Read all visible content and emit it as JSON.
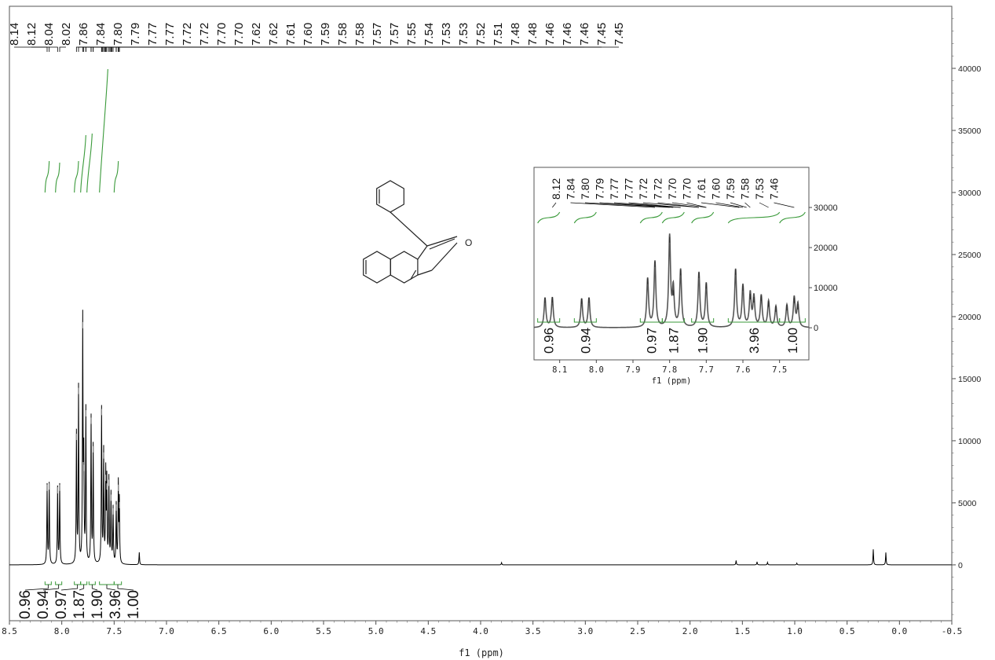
{
  "chart_data": {
    "type": "line",
    "xlabel": "f1 (ppm)",
    "xlim": [
      8.5,
      -0.5
    ],
    "ylim": [
      -4500,
      45000
    ],
    "x_ticks": [
      "8.5",
      "8.0",
      "7.5",
      "7.0",
      "6.5",
      "6.0",
      "5.5",
      "5.0",
      "4.5",
      "4.0",
      "3.5",
      "3.0",
      "2.5",
      "2.0",
      "1.5",
      "1.0",
      "0.5",
      "0.0",
      "-0.5"
    ],
    "x_tick_values": [
      8.5,
      8.0,
      7.5,
      7.0,
      6.5,
      6.0,
      5.5,
      5.0,
      4.5,
      4.0,
      3.5,
      3.0,
      2.5,
      2.0,
      1.5,
      1.0,
      0.5,
      0.0,
      -0.5
    ],
    "y_ticks": [
      "0",
      "5000",
      "10000",
      "15000",
      "20000",
      "25000",
      "30000",
      "35000",
      "40000"
    ],
    "y_tick_values": [
      0,
      5000,
      10000,
      15000,
      20000,
      25000,
      30000,
      35000,
      40000
    ],
    "peak_labels": [
      "8.14",
      "8.12",
      "8.04",
      "8.02",
      "7.86",
      "7.84",
      "7.80",
      "7.79",
      "7.77",
      "7.77",
      "7.72",
      "7.72",
      "7.70",
      "7.70",
      "7.62",
      "7.62",
      "7.61",
      "7.60",
      "7.59",
      "7.58",
      "7.58",
      "7.57",
      "7.57",
      "7.55",
      "7.54",
      "7.53",
      "7.53",
      "7.52",
      "7.51",
      "7.48",
      "7.48",
      "7.46",
      "7.46",
      "7.46",
      "7.45",
      "7.45"
    ],
    "peaks": [
      {
        "x": 8.14,
        "y": 6400
      },
      {
        "x": 8.12,
        "y": 6500
      },
      {
        "x": 8.04,
        "y": 6200
      },
      {
        "x": 8.02,
        "y": 6400
      },
      {
        "x": 7.86,
        "y": 10500
      },
      {
        "x": 7.84,
        "y": 14200
      },
      {
        "x": 7.8,
        "y": 19500
      },
      {
        "x": 7.79,
        "y": 8000
      },
      {
        "x": 7.77,
        "y": 12400
      },
      {
        "x": 7.72,
        "y": 11800
      },
      {
        "x": 7.7,
        "y": 9500
      },
      {
        "x": 7.62,
        "y": 12500
      },
      {
        "x": 7.6,
        "y": 9000
      },
      {
        "x": 7.58,
        "y": 7200
      },
      {
        "x": 7.57,
        "y": 6500
      },
      {
        "x": 7.55,
        "y": 6800
      },
      {
        "x": 7.53,
        "y": 5600
      },
      {
        "x": 7.51,
        "y": 4500
      },
      {
        "x": 7.48,
        "y": 4800
      },
      {
        "x": 7.46,
        "y": 6400
      },
      {
        "x": 7.45,
        "y": 5000
      },
      {
        "x": 7.26,
        "y": 1000
      },
      {
        "x": 3.8,
        "y": 180
      },
      {
        "x": 1.56,
        "y": 350
      },
      {
        "x": 1.36,
        "y": 250
      },
      {
        "x": 1.26,
        "y": 200
      },
      {
        "x": 0.98,
        "y": 140
      },
      {
        "x": 0.25,
        "y": 1250
      },
      {
        "x": 0.13,
        "y": 1000
      }
    ],
    "integrals": [
      {
        "label": "0.96",
        "from": 8.16,
        "to": 8.1
      },
      {
        "label": "0.94",
        "from": 8.06,
        "to": 8.0
      },
      {
        "label": "0.97",
        "from": 7.88,
        "to": 7.82
      },
      {
        "label": "1.87",
        "from": 7.82,
        "to": 7.76
      },
      {
        "label": "1.90",
        "from": 7.74,
        "to": 7.68
      },
      {
        "label": "3.96",
        "from": 7.64,
        "to": 7.5
      },
      {
        "label": "1.00",
        "from": 7.5,
        "to": 7.43
      }
    ],
    "inset": {
      "xlabel": "f1 (ppm)",
      "xlim": [
        8.17,
        7.42
      ],
      "ylim": [
        -8000,
        40000
      ],
      "x_ticks": [
        "8.1",
        "8.0",
        "7.9",
        "7.8",
        "7.7",
        "7.6",
        "7.5"
      ],
      "x_tick_values": [
        8.1,
        8.0,
        7.9,
        7.8,
        7.7,
        7.6,
        7.5
      ],
      "y_ticks": [
        "0",
        "10000",
        "20000",
        "30000"
      ],
      "y_tick_values": [
        0,
        10000,
        20000,
        30000
      ],
      "peak_labels": [
        "8.12",
        "7.84",
        "7.80",
        "7.79",
        "7.77",
        "7.77",
        "7.72",
        "7.72",
        "7.70",
        "7.70",
        "7.61",
        "7.60",
        "7.59",
        "7.58",
        "7.53",
        "7.46"
      ],
      "integral_labels": [
        "0.96",
        "0.94",
        "0.97",
        "1.87",
        "1.90",
        "3.96",
        "1.00"
      ]
    }
  },
  "structure": {
    "atom_label": "O"
  }
}
